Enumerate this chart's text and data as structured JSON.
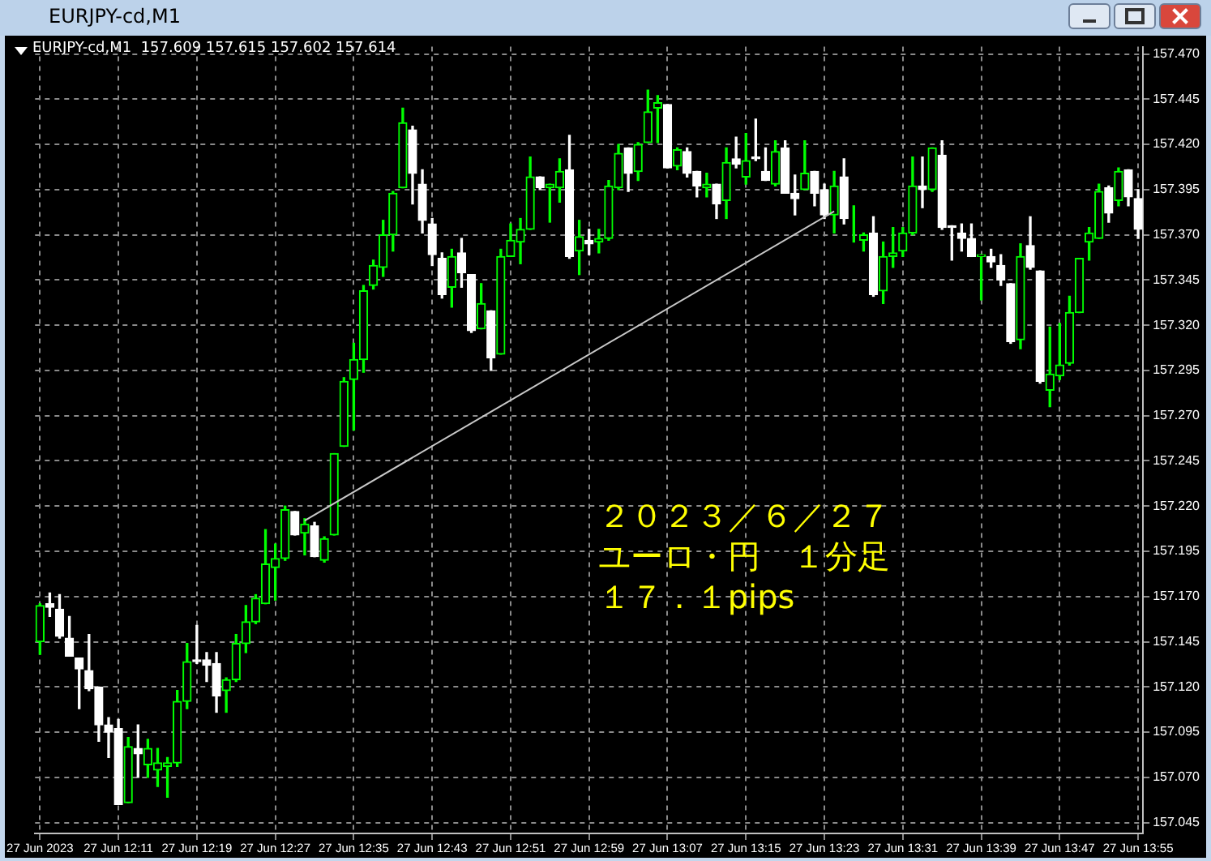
{
  "chart_data": {
    "type": "candlestick",
    "title": "EURJPY-cd,M1",
    "subtitle": "EURJPY-cd,M1  157.609 157.615 157.602 157.614",
    "categories": [
      "27 Jun 2023",
      null,
      null,
      null,
      null,
      null,
      null,
      null,
      "27 Jun 12:11",
      null,
      null,
      null,
      null,
      null,
      null,
      null,
      "27 Jun 12:19",
      null,
      null,
      null,
      null,
      null,
      null,
      null,
      "27 Jun 12:27",
      null,
      null,
      null,
      null,
      null,
      null,
      null,
      "27 Jun 12:35",
      null,
      null,
      null,
      null,
      null,
      null,
      null,
      "27 Jun 12:43",
      null,
      null,
      null,
      null,
      null,
      null,
      null,
      "27 Jun 12:51",
      null,
      null,
      null,
      null,
      null,
      null,
      null,
      "27 Jun 12:59",
      null,
      null,
      null,
      null,
      null,
      null,
      null,
      "27 Jun 13:07",
      null,
      null,
      null,
      null,
      null,
      null,
      null,
      "27 Jun 13:15",
      null,
      null,
      null,
      null,
      null,
      null,
      null,
      "27 Jun 13:23",
      null,
      null,
      null,
      null,
      null,
      null,
      null,
      "27 Jun 13:31",
      null,
      null,
      null,
      null,
      null,
      null,
      null,
      "27 Jun 13:39",
      null,
      null,
      null,
      null,
      null,
      null,
      null,
      "27 Jun 13:47",
      null,
      null,
      null,
      null,
      null,
      null,
      null,
      "27 Jun 13:55"
    ],
    "ohlc": [
      [
        157.145,
        157.166,
        157.138,
        157.165
      ],
      [
        157.166,
        157.172,
        157.159,
        157.164
      ],
      [
        157.163,
        157.171,
        157.147,
        157.148
      ],
      [
        157.147,
        157.159,
        157.137,
        157.137
      ],
      [
        157.136,
        157.136,
        157.108,
        157.13
      ],
      [
        157.129,
        157.149,
        157.118,
        157.119
      ],
      [
        157.12,
        157.12,
        157.09,
        157.099
      ],
      [
        157.099,
        157.103,
        157.081,
        157.095
      ],
      [
        157.097,
        157.102,
        157.055,
        157.055
      ],
      [
        157.056,
        157.092,
        157.056,
        157.087
      ],
      [
        157.086,
        157.099,
        157.07,
        157.083
      ],
      [
        157.077,
        157.091,
        157.07,
        157.086
      ],
      [
        157.074,
        157.086,
        157.065,
        157.078
      ],
      [
        157.076,
        157.081,
        157.059,
        157.078
      ],
      [
        157.078,
        157.118,
        157.076,
        157.112
      ],
      [
        157.112,
        157.144,
        157.108,
        157.134
      ],
      [
        157.135,
        157.154,
        157.133,
        157.134
      ],
      [
        157.135,
        157.139,
        157.123,
        157.132
      ],
      [
        157.133,
        157.139,
        157.106,
        157.115
      ],
      [
        157.118,
        157.125,
        157.106,
        157.124
      ],
      [
        157.124,
        157.149,
        157.123,
        157.144
      ],
      [
        157.144,
        157.165,
        157.139,
        157.156
      ],
      [
        157.156,
        157.171,
        157.155,
        157.169
      ],
      [
        157.166,
        157.207,
        157.166,
        157.188
      ],
      [
        157.186,
        157.199,
        157.168,
        157.191
      ],
      [
        157.191,
        157.22,
        157.19,
        157.218
      ],
      [
        157.217,
        157.217,
        157.204,
        157.204
      ],
      [
        157.205,
        157.213,
        157.193,
        157.21
      ],
      [
        157.209,
        157.211,
        157.192,
        157.192
      ],
      [
        157.19,
        157.203,
        157.189,
        157.202
      ],
      [
        157.204,
        157.249,
        157.204,
        157.249
      ],
      [
        157.253,
        157.291,
        157.253,
        157.289
      ],
      [
        157.29,
        157.31,
        157.262,
        157.301
      ],
      [
        157.301,
        157.342,
        157.294,
        157.339
      ],
      [
        157.342,
        157.356,
        157.34,
        157.353
      ],
      [
        157.352,
        157.378,
        157.347,
        157.37
      ],
      [
        157.37,
        157.394,
        157.361,
        157.393
      ],
      [
        157.396,
        157.44,
        157.396,
        157.432
      ],
      [
        157.428,
        157.43,
        157.387,
        157.404
      ],
      [
        157.398,
        157.406,
        157.371,
        157.378
      ],
      [
        157.376,
        157.379,
        157.353,
        157.359
      ],
      [
        157.357,
        157.36,
        157.335,
        157.337
      ],
      [
        157.341,
        157.362,
        157.33,
        157.358
      ],
      [
        157.36,
        157.368,
        157.341,
        157.349
      ],
      [
        157.348,
        157.348,
        157.316,
        157.317
      ],
      [
        157.318,
        157.343,
        157.318,
        157.332
      ],
      [
        157.328,
        157.328,
        157.295,
        157.302
      ],
      [
        157.304,
        157.362,
        157.304,
        157.358
      ],
      [
        157.358,
        157.376,
        157.358,
        157.367
      ],
      [
        157.366,
        157.379,
        157.354,
        157.373
      ],
      [
        157.373,
        157.413,
        157.373,
        157.402
      ],
      [
        157.402,
        157.402,
        157.395,
        157.396
      ],
      [
        157.396,
        157.398,
        157.377,
        157.398
      ],
      [
        157.396,
        157.412,
        157.388,
        157.405
      ],
      [
        157.406,
        157.425,
        157.357,
        157.358
      ],
      [
        157.361,
        157.378,
        157.348,
        157.369
      ],
      [
        157.367,
        157.373,
        157.359,
        157.365
      ],
      [
        157.366,
        157.373,
        157.36,
        157.368
      ],
      [
        157.368,
        157.4,
        157.367,
        157.397
      ],
      [
        157.396,
        157.42,
        157.395,
        157.415
      ],
      [
        157.418,
        157.418,
        157.394,
        157.404
      ],
      [
        157.405,
        157.421,
        157.4,
        157.42
      ],
      [
        157.421,
        157.45,
        157.421,
        157.438
      ],
      [
        157.44,
        157.447,
        157.421,
        157.443
      ],
      [
        157.442,
        157.442,
        157.407,
        157.407
      ],
      [
        157.408,
        157.418,
        157.406,
        157.417
      ],
      [
        157.416,
        157.418,
        157.402,
        157.404
      ],
      [
        157.405,
        157.405,
        157.391,
        157.397
      ],
      [
        157.396,
        157.404,
        157.391,
        157.398
      ],
      [
        157.398,
        157.398,
        157.379,
        157.387
      ],
      [
        157.389,
        157.418,
        157.379,
        157.41
      ],
      [
        157.412,
        157.424,
        157.407,
        157.409
      ],
      [
        157.402,
        157.426,
        157.398,
        157.411
      ],
      [
        157.413,
        157.434,
        157.411,
        157.412
      ],
      [
        157.405,
        157.418,
        157.4,
        157.4
      ],
      [
        157.398,
        157.422,
        157.397,
        157.416
      ],
      [
        157.418,
        157.422,
        157.393,
        157.393
      ],
      [
        157.393,
        157.403,
        157.381,
        157.39
      ],
      [
        157.395,
        157.422,
        157.395,
        157.404
      ],
      [
        157.405,
        157.405,
        157.386,
        157.393
      ],
      [
        157.395,
        157.398,
        157.379,
        157.381
      ],
      [
        157.381,
        157.405,
        157.371,
        157.397
      ],
      [
        157.402,
        157.412,
        157.376,
        157.379
      ],
      [
        157.37,
        157.386,
        157.366,
        157.37
      ],
      [
        157.367,
        157.371,
        157.361,
        157.37
      ],
      [
        157.371,
        157.38,
        157.336,
        157.337
      ],
      [
        157.339,
        157.366,
        157.332,
        157.358
      ],
      [
        157.358,
        157.374,
        157.352,
        157.36
      ],
      [
        157.361,
        157.374,
        157.358,
        157.371
      ],
      [
        157.371,
        157.413,
        157.37,
        157.397
      ],
      [
        157.397,
        157.413,
        157.385,
        157.395
      ],
      [
        157.395,
        157.418,
        157.394,
        157.418
      ],
      [
        157.414,
        157.422,
        157.373,
        157.374
      ],
      [
        157.375,
        157.375,
        157.356,
        157.374
      ],
      [
        157.371,
        157.376,
        157.361,
        157.368
      ],
      [
        157.368,
        157.376,
        157.358,
        157.358
      ],
      [
        157.358,
        157.359,
        157.334,
        157.359
      ],
      [
        157.358,
        157.362,
        157.352,
        157.355
      ],
      [
        157.353,
        157.359,
        157.342,
        157.345
      ],
      [
        157.343,
        157.343,
        157.31,
        157.311
      ],
      [
        157.312,
        157.365,
        157.307,
        157.358
      ],
      [
        157.364,
        157.38,
        157.351,
        157.352
      ],
      [
        157.35,
        157.35,
        157.288,
        157.289
      ],
      [
        157.284,
        157.319,
        157.275,
        157.293
      ],
      [
        157.292,
        157.321,
        157.29,
        157.298
      ],
      [
        157.299,
        157.336,
        157.298,
        157.327
      ],
      [
        157.327,
        157.357,
        157.327,
        157.357
      ],
      [
        157.366,
        157.374,
        157.356,
        157.371
      ],
      [
        157.368,
        157.398,
        157.368,
        157.394
      ],
      [
        157.396,
        157.397,
        157.377,
        157.382
      ],
      [
        157.389,
        157.407,
        157.386,
        157.405
      ],
      [
        157.406,
        157.406,
        157.386,
        157.391
      ],
      [
        157.39,
        157.395,
        157.368,
        157.373
      ]
    ],
    "colors": [
      "#00ff00",
      "#ffffff",
      "#ffffff",
      "#ffffff",
      "#ffffff",
      "#ffffff",
      "#ffffff",
      "#ffffff",
      "#ffffff",
      "#00ff00",
      "#ffffff",
      "#00ff00",
      "#00ff00",
      "#00ff00",
      "#00ff00",
      "#00ff00",
      "#ffffff",
      "#ffffff",
      "#ffffff",
      "#00ff00",
      "#00ff00",
      "#00ff00",
      "#00ff00",
      "#00ff00",
      "#00ff00",
      "#00ff00",
      "#ffffff",
      "#00ff00",
      "#ffffff",
      "#00ff00",
      "#00ff00",
      "#00ff00",
      "#00ff00",
      "#00ff00",
      "#00ff00",
      "#00ff00",
      "#00ff00",
      "#00ff00",
      "#ffffff",
      "#ffffff",
      "#ffffff",
      "#ffffff",
      "#00ff00",
      "#ffffff",
      "#ffffff",
      "#00ff00",
      "#ffffff",
      "#00ff00",
      "#00ff00",
      "#00ff00",
      "#00ff00",
      "#ffffff",
      "#00ff00",
      "#00ff00",
      "#ffffff",
      "#00ff00",
      "#ffffff",
      "#00ff00",
      "#00ff00",
      "#00ff00",
      "#ffffff",
      "#00ff00",
      "#00ff00",
      "#00ff00",
      "#ffffff",
      "#00ff00",
      "#ffffff",
      "#ffffff",
      "#00ff00",
      "#ffffff",
      "#00ff00",
      "#ffffff",
      "#00ff00",
      "#ffffff",
      "#ffffff",
      "#00ff00",
      "#ffffff",
      "#ffffff",
      "#00ff00",
      "#ffffff",
      "#ffffff",
      "#00ff00",
      "#ffffff",
      "#00ff00",
      "#00ff00",
      "#ffffff",
      "#00ff00",
      "#00ff00",
      "#00ff00",
      "#00ff00",
      "#ffffff",
      "#00ff00",
      "#ffffff",
      "#ffffff",
      "#ffffff",
      "#ffffff",
      "#00ff00",
      "#ffffff",
      "#ffffff",
      "#ffffff",
      "#00ff00",
      "#ffffff",
      "#ffffff",
      "#00ff00",
      "#00ff00",
      "#00ff00",
      "#00ff00",
      "#00ff00",
      "#00ff00",
      "#ffffff",
      "#00ff00",
      "#ffffff",
      "#ffffff"
    ],
    "series": [
      {
        "type": "line",
        "color": "#c8c8c8",
        "values": [
          null,
          null,
          null,
          null,
          null,
          null,
          null,
          null,
          null,
          null,
          null,
          null,
          null,
          null,
          null,
          null,
          null,
          null,
          null,
          null,
          null,
          null,
          null,
          null,
          null,
          null,
          null,
          157.212,
          null,
          null,
          null,
          null,
          null,
          null,
          null,
          null,
          null,
          null,
          null,
          null,
          null,
          null,
          null,
          null,
          null,
          null,
          null,
          null,
          null,
          null,
          null,
          null,
          null,
          null,
          null,
          null,
          null,
          null,
          null,
          null,
          null,
          null,
          null,
          null,
          null,
          null,
          null,
          null,
          null,
          null,
          null,
          null,
          null,
          null,
          null,
          null,
          null,
          null,
          null,
          null,
          null,
          157.383,
          null,
          null,
          null,
          null,
          null,
          null,
          null,
          null,
          null,
          null,
          null,
          null,
          null,
          null,
          null,
          null,
          null,
          null,
          null,
          null,
          null,
          null,
          null,
          null,
          null,
          null,
          null,
          null,
          null,
          null,
          null
        ]
      }
    ],
    "ylim": [
      157.039,
      157.474
    ],
    "yticks": [
      {
        "value": 157.045,
        "label": "157.045"
      },
      {
        "value": 157.07,
        "label": "157.070"
      },
      157.095,
      {
        "value": 157.12,
        "label": "157.120"
      },
      157.145,
      {
        "value": 157.17,
        "label": "157.170"
      },
      157.195,
      {
        "value": 157.22,
        "label": "157.220"
      },
      157.245,
      {
        "value": 157.27,
        "label": "157.270"
      },
      157.295,
      {
        "value": 157.32,
        "label": "157.320"
      },
      157.345,
      {
        "value": 157.37,
        "label": "157.370"
      },
      157.395,
      {
        "value": 157.42,
        "label": "157.420"
      },
      157.445,
      {
        "value": 157.47,
        "label": "157.470"
      }
    ],
    "grid": true,
    "annotations": [
      "２０２３／６／２７",
      "ユーロ・円　１分足",
      "１７．１pips"
    ]
  }
}
